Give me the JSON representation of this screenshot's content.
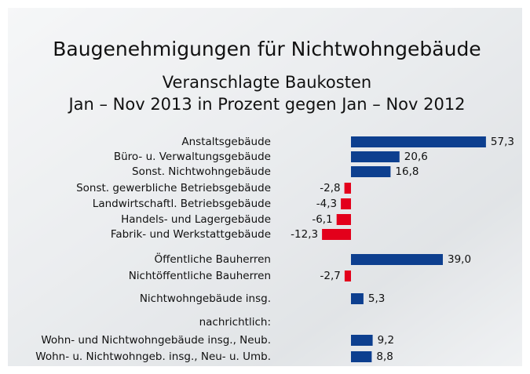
{
  "chart_data": {
    "type": "hbar",
    "title": "Baugenehmigungen für Nichtwohngebäude",
    "subtitle": [
      "Veranschlagte Baukosten",
      "Jan – Nov 2013 in Prozent gegen Jan – Nov 2012"
    ],
    "categories": [
      "Anstaltsgebäude",
      "Büro- u. Verwaltungsgebäude",
      "Sonst. Nichtwohngebäude",
      "Sonst. gewerbliche Betriebsgebäude",
      "Landwirtschaftl. Betriebsgebäude",
      "Handels- und Lagergebäude",
      "Fabrik- und Werkstattgebäude",
      "Öffentliche Bauherren",
      "Nichtöffentliche Bauherren",
      "Nichtwohngebäude insg.",
      "nachrichtlich:",
      "Wohn- und Nichtwohngebäude insg., Neub.",
      "Wohn- u. Nichtwohngeb. insg., Neu- u. Umb."
    ],
    "values": [
      57.3,
      20.6,
      16.8,
      -2.8,
      -4.3,
      -6.1,
      -12.3,
      39.0,
      -2.7,
      5.3,
      null,
      9.2,
      8.8
    ],
    "value_labels": [
      "57,3",
      "20,6",
      "16,8",
      "-2,8",
      "-4,3",
      "-6,1",
      "-12,3",
      "39,0",
      "-2,7",
      "5,3",
      null,
      "9,2",
      "8,8"
    ],
    "positive_color": "#0d3f8f",
    "negative_color": "#e3001b"
  }
}
